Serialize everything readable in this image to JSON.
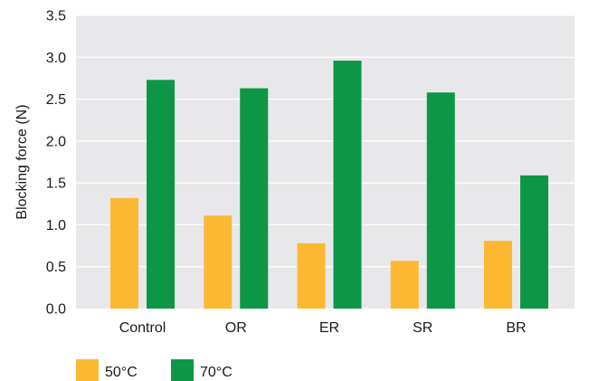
{
  "chart_data": {
    "type": "bar",
    "title": "",
    "xlabel": "",
    "ylabel": "Blocking force (N)",
    "ylim": [
      0,
      3.5
    ],
    "yticks": [
      "0.0",
      "0.5",
      "1.0",
      "1.5",
      "2.0",
      "2.5",
      "3.0",
      "3.5"
    ],
    "grid": true,
    "legend_position": "bottom-left",
    "categories": [
      "Control",
      "OR",
      "ER",
      "SR",
      "BR"
    ],
    "series": [
      {
        "name": "50°C",
        "color": "#FDB833",
        "values": [
          1.32,
          1.11,
          0.78,
          0.57,
          0.81
        ]
      },
      {
        "name": "70°C",
        "color": "#0E9647",
        "values": [
          2.73,
          2.63,
          2.96,
          2.58,
          1.59
        ]
      }
    ],
    "plot_background": "#E8E8EB",
    "gridline_color": "#FFFFFF"
  }
}
